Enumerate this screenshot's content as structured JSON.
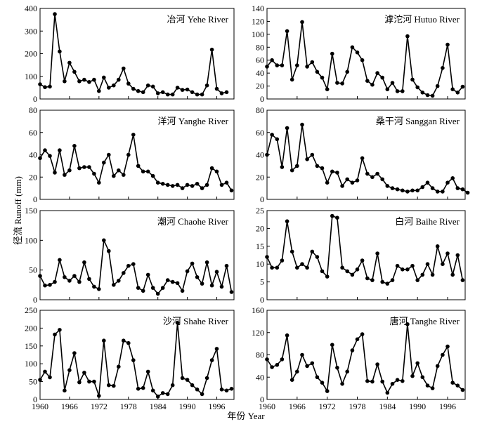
{
  "xlabel": "年份 Year",
  "ylabel": "径流 Runoff (mm)",
  "chart_data": [
    {
      "type": "line",
      "title": "冶河 Yehe River",
      "x_start": 1960,
      "ylim": [
        0,
        400
      ],
      "yticks": [
        0,
        100,
        200,
        300,
        400
      ],
      "xticks": [
        1960,
        1966,
        1972,
        1978,
        1984,
        1990,
        1996
      ],
      "values": [
        65,
        52,
        55,
        375,
        210,
        78,
        160,
        120,
        78,
        85,
        75,
        85,
        35,
        95,
        50,
        60,
        85,
        135,
        68,
        45,
        35,
        30,
        60,
        55,
        25,
        30,
        20,
        20,
        50,
        40,
        42,
        30,
        20,
        20,
        60,
        218,
        45,
        25,
        30
      ]
    },
    {
      "type": "line",
      "title": "滹沱河 Hutuo River",
      "x_start": 1960,
      "ylim": [
        0,
        140
      ],
      "yticks": [
        0,
        20,
        40,
        60,
        80,
        100,
        120,
        140
      ],
      "xticks": [
        1960,
        1966,
        1972,
        1978,
        1984,
        1990,
        1996
      ],
      "values": [
        50,
        60,
        52,
        52,
        105,
        30,
        52,
        119,
        50,
        57,
        42,
        33,
        15,
        70,
        25,
        24,
        42,
        80,
        72,
        60,
        28,
        22,
        40,
        33,
        15,
        25,
        12,
        12,
        97,
        30,
        18,
        10,
        6,
        5,
        20,
        48,
        84,
        15,
        10,
        19
      ]
    },
    {
      "type": "line",
      "title": "洋河 Yanghe River",
      "x_start": 1960,
      "ylim": [
        0,
        80
      ],
      "yticks": [
        0,
        20,
        40,
        60,
        80
      ],
      "xticks": [
        1960,
        1966,
        1972,
        1978,
        1984,
        1990,
        1996
      ],
      "values": [
        37,
        44,
        39,
        24,
        44,
        22,
        26,
        48,
        28,
        29,
        29,
        23,
        15,
        33,
        40,
        21,
        26,
        22,
        40,
        58,
        30,
        25,
        25,
        21,
        15,
        14,
        13,
        12,
        13,
        10,
        13,
        12,
        14,
        10,
        13,
        28,
        25,
        13,
        15,
        8
      ]
    },
    {
      "type": "line",
      "title": "桑干河 Sanggan River",
      "x_start": 1960,
      "ylim": [
        0,
        80
      ],
      "yticks": [
        0,
        20,
        40,
        60,
        80
      ],
      "xticks": [
        1960,
        1966,
        1972,
        1978,
        1984,
        1990,
        1996
      ],
      "values": [
        40,
        58,
        54,
        29,
        64,
        26,
        30,
        67,
        36,
        40,
        30,
        28,
        15,
        25,
        24,
        12,
        18,
        15,
        17,
        37,
        23,
        20,
        23,
        18,
        12,
        10,
        9,
        8,
        7,
        8,
        8,
        11,
        15,
        10,
        7,
        7,
        15,
        19,
        10,
        9,
        6
      ]
    },
    {
      "type": "line",
      "title": "潮河 Chaohe River",
      "x_start": 1960,
      "ylim": [
        0,
        150
      ],
      "yticks": [
        0,
        50,
        100,
        150
      ],
      "xticks": [
        1960,
        1966,
        1972,
        1978,
        1984,
        1990,
        1996
      ],
      "values": [
        40,
        24,
        25,
        30,
        67,
        38,
        32,
        40,
        30,
        63,
        35,
        22,
        18,
        100,
        82,
        25,
        32,
        45,
        57,
        60,
        20,
        15,
        42,
        20,
        10,
        20,
        33,
        30,
        28,
        15,
        48,
        61,
        38,
        27,
        63,
        24,
        47,
        22,
        57,
        13
      ]
    },
    {
      "type": "line",
      "title": "白河 Baihe River",
      "x_start": 1960,
      "ylim": [
        0,
        25
      ],
      "yticks": [
        0,
        5,
        10,
        15,
        20,
        25
      ],
      "xticks": [
        1960,
        1966,
        1972,
        1978,
        1984,
        1990,
        1996
      ],
      "values": [
        12,
        9,
        9,
        11,
        22,
        13.5,
        9,
        10,
        9,
        13.5,
        12,
        8,
        6.5,
        23.5,
        23,
        9,
        8,
        7,
        8.5,
        11,
        6,
        5.5,
        13,
        5,
        4.5,
        5.5,
        9.5,
        8.5,
        8.5,
        9.5,
        5.5,
        7,
        10,
        7,
        15,
        10,
        13,
        7,
        12.5,
        5.5
      ]
    },
    {
      "type": "line",
      "title": "沙河 Shahe River",
      "x_start": 1960,
      "ylim": [
        0,
        250
      ],
      "yticks": [
        0,
        50,
        100,
        150,
        200,
        250
      ],
      "xticks": [
        1960,
        1966,
        1972,
        1978,
        1984,
        1990,
        1996
      ],
      "values": [
        55,
        78,
        62,
        182,
        195,
        25,
        82,
        130,
        48,
        75,
        50,
        50,
        10,
        165,
        40,
        38,
        92,
        165,
        158,
        110,
        30,
        32,
        78,
        25,
        8,
        18,
        15,
        40,
        215,
        60,
        55,
        40,
        28,
        15,
        60,
        110,
        142,
        28,
        25,
        30
      ]
    },
    {
      "type": "line",
      "title": "唐河 Tanghe River",
      "x_start": 1960,
      "ylim": [
        0,
        160
      ],
      "yticks": [
        0,
        40,
        80,
        120,
        160
      ],
      "xticks": [
        1960,
        1966,
        1972,
        1978,
        1984,
        1990,
        1996
      ],
      "values": [
        72,
        58,
        62,
        72,
        115,
        35,
        50,
        80,
        60,
        65,
        40,
        30,
        15,
        98,
        57,
        28,
        50,
        88,
        108,
        117,
        33,
        32,
        63,
        32,
        12,
        28,
        35,
        33,
        135,
        42,
        65,
        40,
        25,
        20,
        60,
        80,
        95,
        30,
        25,
        17
      ]
    }
  ]
}
